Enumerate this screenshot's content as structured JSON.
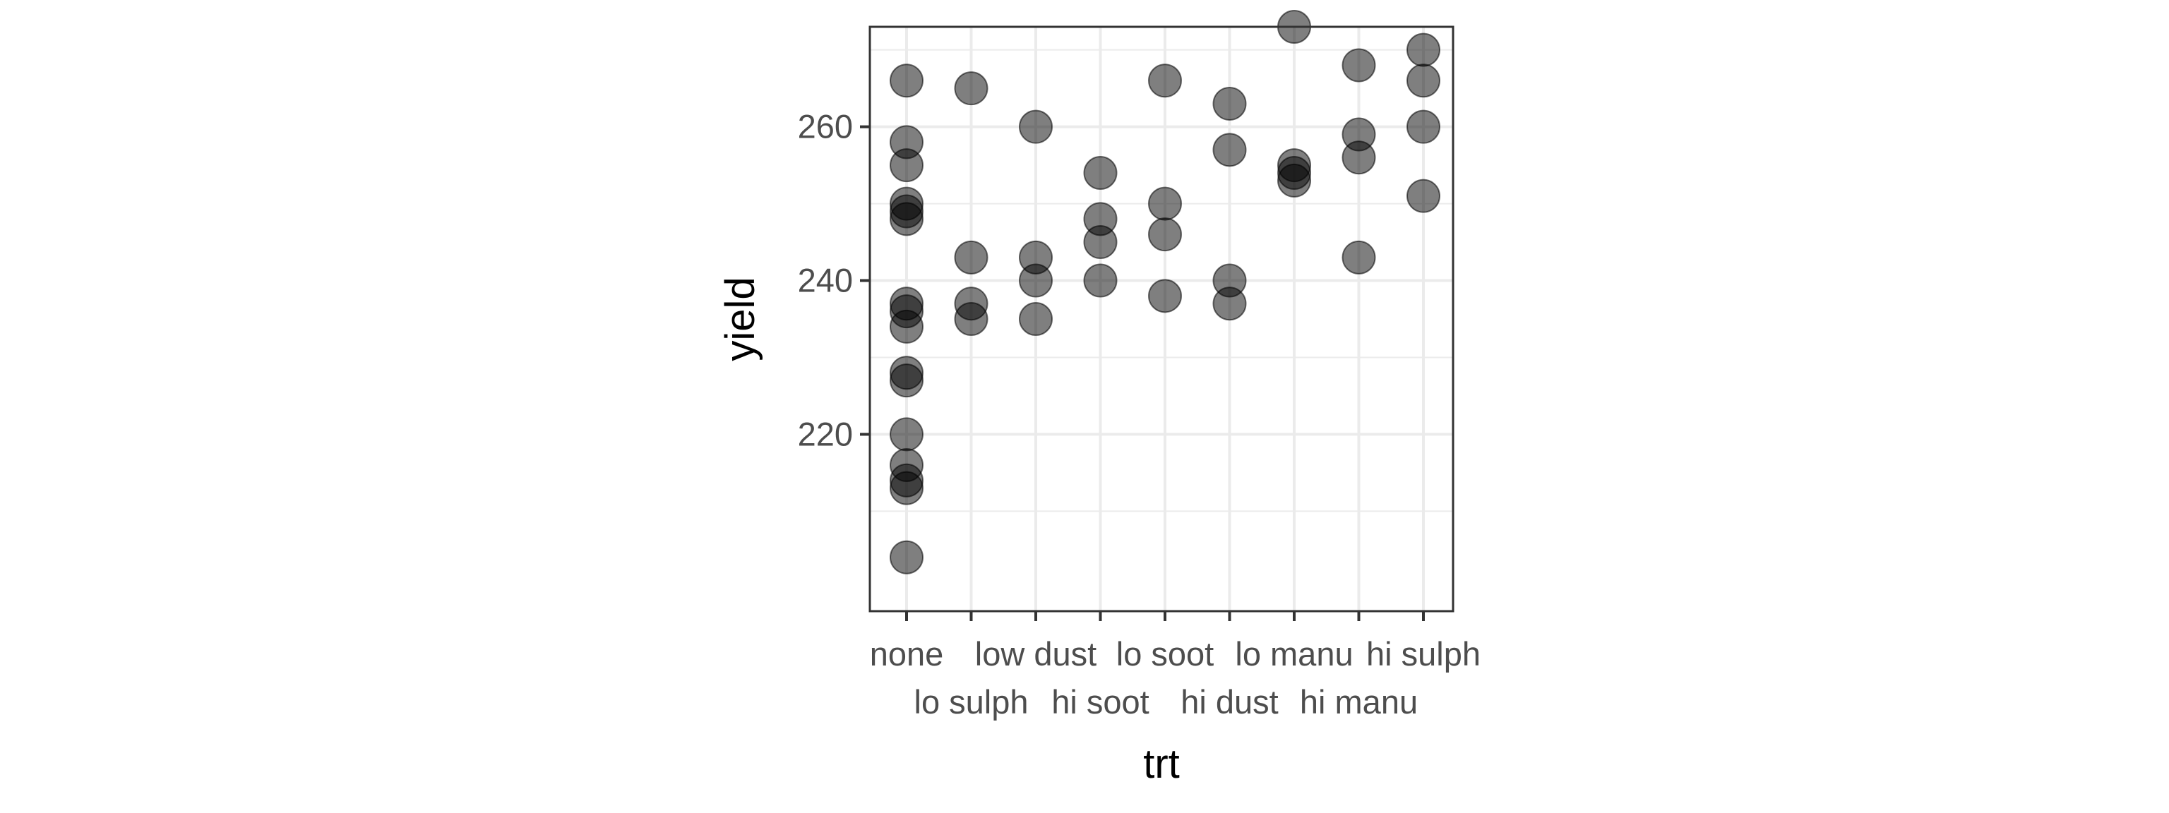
{
  "chart_data": {
    "type": "scatter",
    "xlabel": "trt",
    "ylabel": "yield",
    "categories": [
      "none",
      "lo sulph",
      "low dust",
      "hi soot",
      "lo soot",
      "hi dust",
      "lo manu",
      "hi manu",
      "hi sulph"
    ],
    "category_label_rows": [
      1,
      2,
      1,
      2,
      1,
      2,
      1,
      2,
      1
    ],
    "ylim": [
      197,
      273
    ],
    "yticks": [
      220,
      240,
      260
    ],
    "ytick_labels": [
      "220",
      "240",
      "260"
    ],
    "grid": true,
    "point_color": "#000000",
    "point_opacity": 0.5,
    "points": [
      {
        "x": "none",
        "y": 266
      },
      {
        "x": "none",
        "y": 258
      },
      {
        "x": "none",
        "y": 255
      },
      {
        "x": "none",
        "y": 250
      },
      {
        "x": "none",
        "y": 249
      },
      {
        "x": "none",
        "y": 248
      },
      {
        "x": "none",
        "y": 237
      },
      {
        "x": "none",
        "y": 236
      },
      {
        "x": "none",
        "y": 234
      },
      {
        "x": "none",
        "y": 228
      },
      {
        "x": "none",
        "y": 227
      },
      {
        "x": "none",
        "y": 220
      },
      {
        "x": "none",
        "y": 216
      },
      {
        "x": "none",
        "y": 214
      },
      {
        "x": "none",
        "y": 213
      },
      {
        "x": "none",
        "y": 204
      },
      {
        "x": "lo sulph",
        "y": 265
      },
      {
        "x": "lo sulph",
        "y": 243
      },
      {
        "x": "lo sulph",
        "y": 237
      },
      {
        "x": "lo sulph",
        "y": 235
      },
      {
        "x": "low dust",
        "y": 260
      },
      {
        "x": "low dust",
        "y": 243
      },
      {
        "x": "low dust",
        "y": 240
      },
      {
        "x": "low dust",
        "y": 235
      },
      {
        "x": "hi soot",
        "y": 254
      },
      {
        "x": "hi soot",
        "y": 248
      },
      {
        "x": "hi soot",
        "y": 245
      },
      {
        "x": "hi soot",
        "y": 240
      },
      {
        "x": "lo soot",
        "y": 266
      },
      {
        "x": "lo soot",
        "y": 250
      },
      {
        "x": "lo soot",
        "y": 246
      },
      {
        "x": "lo soot",
        "y": 238
      },
      {
        "x": "hi dust",
        "y": 263
      },
      {
        "x": "hi dust",
        "y": 257
      },
      {
        "x": "hi dust",
        "y": 240
      },
      {
        "x": "hi dust",
        "y": 237
      },
      {
        "x": "lo manu",
        "y": 273
      },
      {
        "x": "lo manu",
        "y": 255
      },
      {
        "x": "lo manu",
        "y": 254
      },
      {
        "x": "lo manu",
        "y": 253
      },
      {
        "x": "hi manu",
        "y": 268
      },
      {
        "x": "hi manu",
        "y": 259
      },
      {
        "x": "hi manu",
        "y": 256
      },
      {
        "x": "hi manu",
        "y": 243
      },
      {
        "x": "hi sulph",
        "y": 270
      },
      {
        "x": "hi sulph",
        "y": 266
      },
      {
        "x": "hi sulph",
        "y": 260
      },
      {
        "x": "hi sulph",
        "y": 251
      }
    ]
  }
}
